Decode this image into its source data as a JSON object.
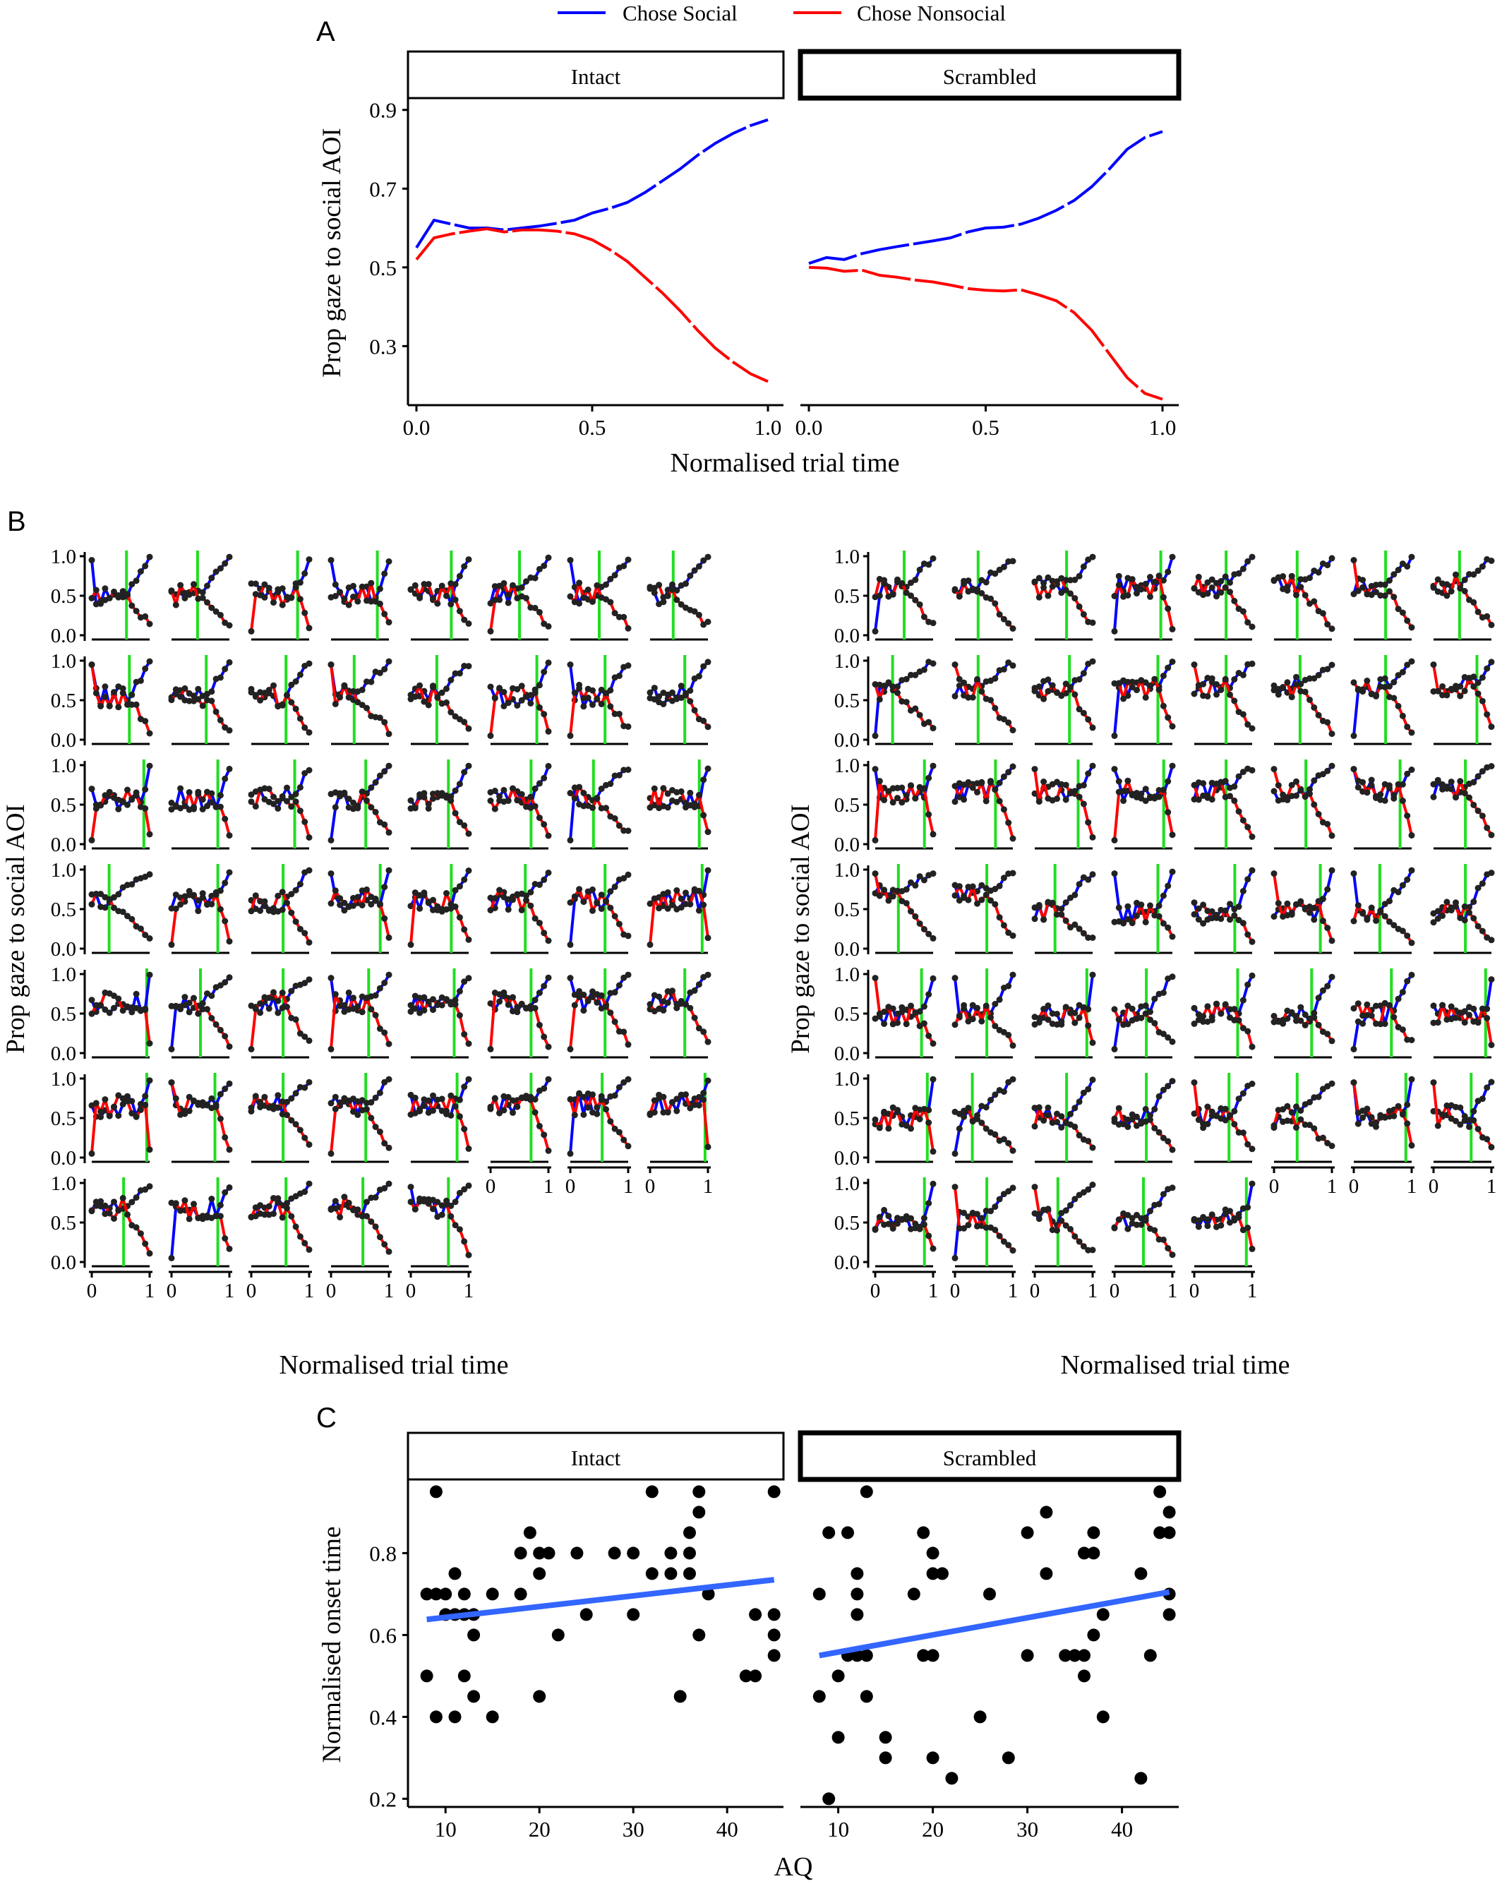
{
  "legend": {
    "items": [
      {
        "label": "Chose Social",
        "color": "#0000ff"
      },
      {
        "label": "Chose Nonsocial",
        "color": "#ff0000"
      }
    ]
  },
  "panel_a": {
    "letter": "A",
    "ylabel": "Prop gaze to social AOI",
    "xlabel": "Normalised trial time",
    "facets": [
      "Intact",
      "Scrambled"
    ],
    "yticks": [
      "0.3",
      "0.5",
      "0.7",
      "0.9"
    ],
    "xticks": [
      "0.0",
      "0.5",
      "1.0"
    ]
  },
  "panel_b": {
    "letter": "B",
    "ylabel": "Prop gaze to social AOI",
    "xlabel": "Normalised trial time",
    "yticks": [
      "0.0",
      "0.5",
      "1.0"
    ],
    "xticks": [
      "0",
      "1"
    ]
  },
  "panel_c": {
    "letter": "C",
    "ylabel": "Normalised onset time",
    "xlabel": "AQ",
    "facets": [
      "Intact",
      "Scrambled"
    ],
    "yticks": [
      "0.2",
      "0.4",
      "0.6",
      "0.8"
    ],
    "xticks": [
      "10",
      "20",
      "30",
      "40"
    ]
  },
  "chart_data": [
    {
      "type": "line",
      "panel": "A",
      "xlabel": "Normalised trial time",
      "ylabel": "Prop gaze to social AOI",
      "xlim": [
        0,
        1
      ],
      "ylim": [
        0.15,
        0.93
      ],
      "facets": [
        {
          "name": "Intact",
          "x": [
            0,
            0.05,
            0.1,
            0.15,
            0.2,
            0.25,
            0.3,
            0.35,
            0.4,
            0.45,
            0.5,
            0.55,
            0.6,
            0.65,
            0.7,
            0.75,
            0.8,
            0.85,
            0.9,
            0.95,
            1.0
          ],
          "series": [
            {
              "name": "Chose Social",
              "color": "#0000ff",
              "values": [
                0.55,
                0.62,
                0.61,
                0.6,
                0.6,
                0.595,
                0.6,
                0.605,
                0.612,
                0.62,
                0.638,
                0.65,
                0.665,
                0.69,
                0.72,
                0.75,
                0.785,
                0.815,
                0.84,
                0.86,
                0.875
              ]
            },
            {
              "name": "Chose Nonsocial",
              "color": "#ff0000",
              "values": [
                0.52,
                0.575,
                0.585,
                0.592,
                0.598,
                0.59,
                0.595,
                0.595,
                0.592,
                0.585,
                0.57,
                0.545,
                0.515,
                0.475,
                0.435,
                0.39,
                0.34,
                0.295,
                0.26,
                0.23,
                0.21
              ]
            }
          ]
        },
        {
          "name": "Scrambled",
          "x": [
            0,
            0.05,
            0.1,
            0.15,
            0.2,
            0.25,
            0.3,
            0.35,
            0.4,
            0.45,
            0.5,
            0.55,
            0.6,
            0.65,
            0.7,
            0.75,
            0.8,
            0.85,
            0.9,
            0.95,
            1.0
          ],
          "series": [
            {
              "name": "Chose Social",
              "color": "#0000ff",
              "values": [
                0.51,
                0.525,
                0.52,
                0.535,
                0.545,
                0.553,
                0.56,
                0.567,
                0.575,
                0.59,
                0.6,
                0.602,
                0.61,
                0.625,
                0.645,
                0.67,
                0.705,
                0.75,
                0.8,
                0.83,
                0.845
              ]
            },
            {
              "name": "Chose Nonsocial",
              "color": "#ff0000",
              "values": [
                0.5,
                0.498,
                0.49,
                0.493,
                0.48,
                0.475,
                0.468,
                0.463,
                0.455,
                0.446,
                0.442,
                0.44,
                0.443,
                0.43,
                0.415,
                0.385,
                0.34,
                0.28,
                0.22,
                0.18,
                0.165
              ]
            }
          ]
        }
      ]
    },
    {
      "type": "line",
      "panel": "B",
      "xlabel": "Normalised trial time",
      "ylabel": "Prop gaze to social AOI",
      "xlim": [
        0,
        1
      ],
      "ylim": [
        0,
        1
      ],
      "groups": [
        {
          "rows": 7,
          "cols": 8,
          "n": 53,
          "onsets": [
            0.6,
            0.45,
            0.8,
            0.8,
            0.7,
            0.5,
            0.5,
            0.4,
            0.65,
            0.6,
            0.6,
            0.4,
            0.45,
            0.8,
            0.6,
            0.6,
            0.9,
            0.8,
            0.75,
            0.6,
            0.65,
            0.7,
            0.4,
            0.85,
            0.3,
            0.8,
            0.55,
            0.85,
            0.7,
            0.6,
            0.6,
            0.9,
            0.95,
            0.5,
            0.55,
            0.65,
            0.75,
            0.7,
            0.6,
            0.6,
            0.95,
            0.75,
            0.55,
            0.6,
            0.8,
            0.7,
            0.55,
            0.95,
            0.55,
            0.8,
            0.6,
            0.55,
            0.65
          ]
        },
        {
          "rows": 7,
          "cols": 8,
          "n": 53,
          "onsets": [
            0.5,
            0.4,
            0.55,
            0.8,
            0.55,
            0.4,
            0.55,
            0.45,
            0.3,
            0.4,
            0.6,
            0.75,
            0.55,
            0.45,
            0.55,
            0.75,
            0.85,
            0.7,
            0.75,
            0.85,
            0.55,
            0.55,
            0.8,
            0.55,
            0.4,
            0.55,
            0.35,
            0.75,
            0.7,
            0.8,
            0.45,
            0.55,
            0.8,
            0.55,
            0.9,
            0.55,
            0.75,
            0.65,
            0.65,
            0.9,
            0.9,
            0.3,
            0.55,
            0.55,
            0.6,
            0.4,
            0.9,
            0.65,
            0.85,
            0.55,
            0.4,
            0.5,
            0.9
          ]
        }
      ]
    },
    {
      "type": "scatter",
      "panel": "C",
      "xlabel": "AQ",
      "ylabel": "Normalised onset time",
      "xlim": [
        6,
        46
      ],
      "ylim": [
        0.18,
        0.98
      ],
      "facets": [
        {
          "name": "Intact",
          "points": [
            [
              8,
              0.7
            ],
            [
              8,
              0.5
            ],
            [
              9,
              0.95
            ],
            [
              9,
              0.4
            ],
            [
              9,
              0.7
            ],
            [
              10,
              0.65
            ],
            [
              10,
              0.7
            ],
            [
              11,
              0.75
            ],
            [
              11,
              0.4
            ],
            [
              11,
              0.65
            ],
            [
              12,
              0.7
            ],
            [
              12,
              0.65
            ],
            [
              12,
              0.5
            ],
            [
              13,
              0.6
            ],
            [
              13,
              0.45
            ],
            [
              13,
              0.65
            ],
            [
              15,
              0.4
            ],
            [
              15,
              0.7
            ],
            [
              18,
              0.7
            ],
            [
              18,
              0.8
            ],
            [
              19,
              0.85
            ],
            [
              20,
              0.75
            ],
            [
              20,
              0.45
            ],
            [
              20,
              0.8
            ],
            [
              21,
              0.8
            ],
            [
              22,
              0.6
            ],
            [
              24,
              0.8
            ],
            [
              25,
              0.65
            ],
            [
              28,
              0.8
            ],
            [
              30,
              0.8
            ],
            [
              30,
              0.65
            ],
            [
              32,
              0.95
            ],
            [
              32,
              0.75
            ],
            [
              34,
              0.8
            ],
            [
              34,
              0.75
            ],
            [
              35,
              0.45
            ],
            [
              36,
              0.75
            ],
            [
              36,
              0.85
            ],
            [
              36,
              0.8
            ],
            [
              37,
              0.95
            ],
            [
              37,
              0.9
            ],
            [
              37,
              0.6
            ],
            [
              38,
              0.7
            ],
            [
              42,
              0.5
            ],
            [
              43,
              0.5
            ],
            [
              43,
              0.65
            ],
            [
              45,
              0.95
            ],
            [
              45,
              0.65
            ],
            [
              45,
              0.6
            ],
            [
              45,
              0.55
            ]
          ],
          "fit": {
            "x": [
              8,
              45
            ],
            "y": [
              0.638,
              0.735
            ]
          }
        },
        {
          "name": "Scrambled",
          "points": [
            [
              8,
              0.7
            ],
            [
              8,
              0.45
            ],
            [
              9,
              0.85
            ],
            [
              9,
              0.2
            ],
            [
              10,
              0.5
            ],
            [
              10,
              0.35
            ],
            [
              11,
              0.55
            ],
            [
              11,
              0.85
            ],
            [
              12,
              0.55
            ],
            [
              12,
              0.75
            ],
            [
              12,
              0.65
            ],
            [
              12,
              0.7
            ],
            [
              13,
              0.95
            ],
            [
              13,
              0.55
            ],
            [
              13,
              0.45
            ],
            [
              15,
              0.35
            ],
            [
              15,
              0.3
            ],
            [
              18,
              0.7
            ],
            [
              19,
              0.55
            ],
            [
              19,
              0.85
            ],
            [
              20,
              0.3
            ],
            [
              20,
              0.55
            ],
            [
              20,
              0.8
            ],
            [
              20,
              0.75
            ],
            [
              21,
              0.75
            ],
            [
              22,
              0.25
            ],
            [
              25,
              0.4
            ],
            [
              26,
              0.7
            ],
            [
              28,
              0.3
            ],
            [
              30,
              0.85
            ],
            [
              30,
              0.55
            ],
            [
              32,
              0.9
            ],
            [
              32,
              0.75
            ],
            [
              34,
              0.55
            ],
            [
              35,
              0.55
            ],
            [
              36,
              0.55
            ],
            [
              36,
              0.5
            ],
            [
              36,
              0.8
            ],
            [
              37,
              0.85
            ],
            [
              37,
              0.8
            ],
            [
              37,
              0.6
            ],
            [
              38,
              0.65
            ],
            [
              38,
              0.4
            ],
            [
              42,
              0.75
            ],
            [
              42,
              0.25
            ],
            [
              43,
              0.55
            ],
            [
              44,
              0.95
            ],
            [
              44,
              0.85
            ],
            [
              45,
              0.9
            ],
            [
              45,
              0.85
            ],
            [
              45,
              0.65
            ],
            [
              45,
              0.7
            ]
          ],
          "fit": {
            "x": [
              8,
              45
            ],
            "y": [
              0.55,
              0.705
            ]
          }
        }
      ]
    }
  ]
}
